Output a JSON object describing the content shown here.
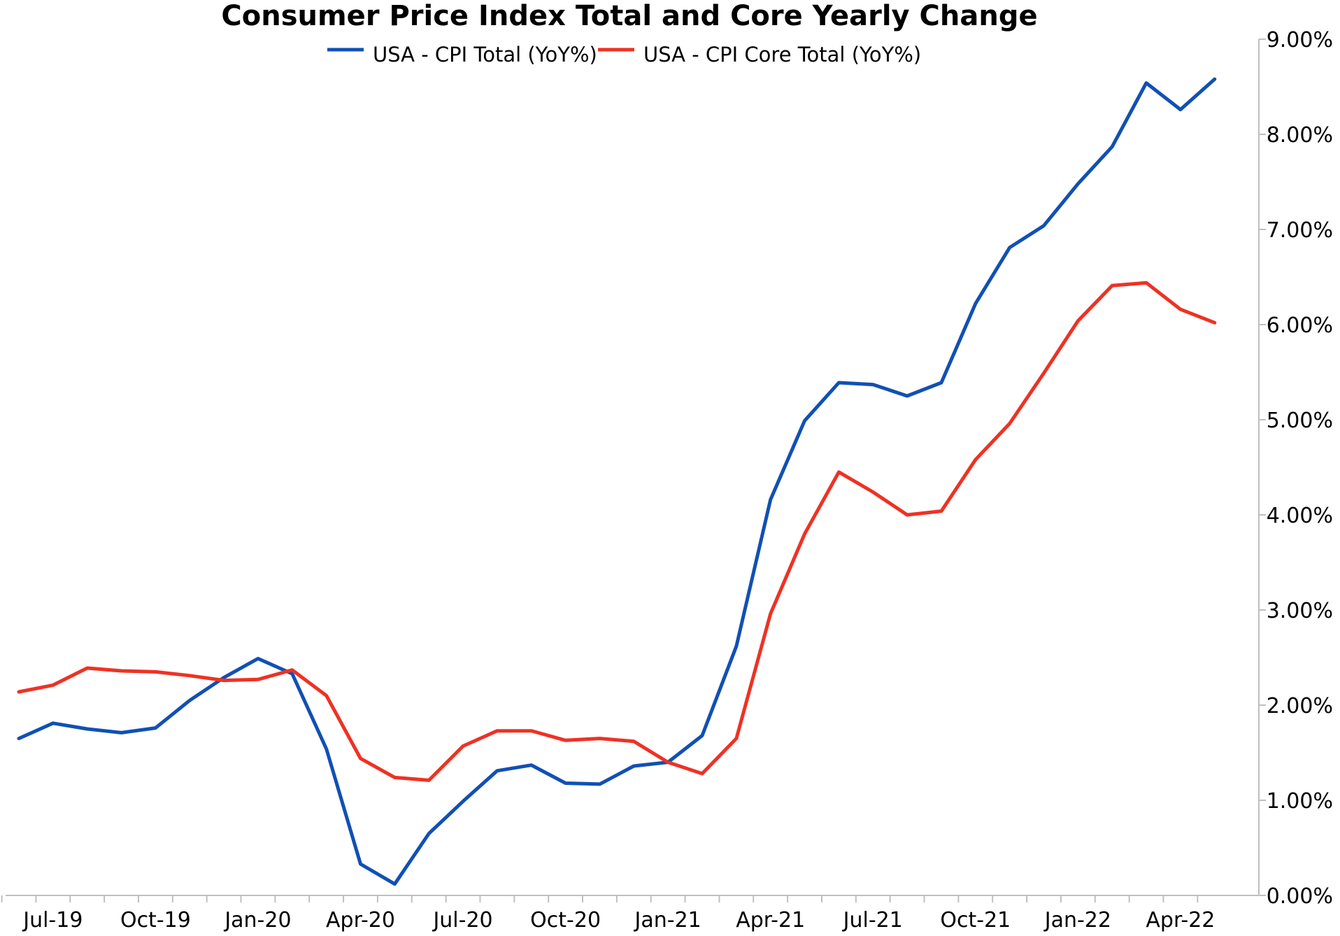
{
  "chart_data": {
    "type": "line",
    "title": "Consumer Price Index Total and Core Yearly Change",
    "xlabel": "",
    "ylabel": "",
    "ylim": [
      0,
      9
    ],
    "y_ticks": [
      "0.00%",
      "1.00%",
      "2.00%",
      "3.00%",
      "4.00%",
      "5.00%",
      "6.00%",
      "7.00%",
      "8.00%",
      "9.00%"
    ],
    "y_axis_position": "right",
    "x_start": "Jun-19",
    "x": [
      "Jun-19",
      "Jul-19",
      "Aug-19",
      "Sep-19",
      "Oct-19",
      "Nov-19",
      "Dec-19",
      "Jan-20",
      "Feb-20",
      "Mar-20",
      "Apr-20",
      "May-20",
      "Jun-20",
      "Jul-20",
      "Aug-20",
      "Sep-20",
      "Oct-20",
      "Nov-20",
      "Dec-20",
      "Jan-21",
      "Feb-21",
      "Mar-21",
      "Apr-21",
      "May-21",
      "Jun-21",
      "Jul-21",
      "Aug-21",
      "Sep-21",
      "Oct-21",
      "Nov-21",
      "Dec-21",
      "Jan-22",
      "Feb-22",
      "Mar-22",
      "Apr-22",
      "May-22"
    ],
    "x_tick_labels": [
      "Jul-19",
      "Oct-19",
      "Jan-20",
      "Apr-20",
      "Jul-20",
      "Oct-20",
      "Jan-21",
      "Apr-21",
      "Jul-21",
      "Oct-21",
      "Jan-22",
      "Apr-22"
    ],
    "legend_position": "top-center",
    "grid": false,
    "series": [
      {
        "name": "USA - CPI Total (YoY%)",
        "color": "#1150b4",
        "values": [
          1.65,
          1.81,
          1.75,
          1.71,
          1.76,
          2.05,
          2.29,
          2.49,
          2.33,
          1.54,
          0.33,
          0.12,
          0.65,
          0.99,
          1.31,
          1.37,
          1.18,
          1.17,
          1.36,
          1.4,
          1.68,
          2.62,
          4.16,
          4.99,
          5.39,
          5.37,
          5.25,
          5.39,
          6.22,
          6.81,
          7.04,
          7.48,
          7.87,
          8.54,
          8.26,
          8.58
        ]
      },
      {
        "name": "USA - CPI Core Total (YoY%)",
        "color": "#ee3224",
        "values": [
          2.14,
          2.21,
          2.39,
          2.36,
          2.35,
          2.31,
          2.26,
          2.27,
          2.37,
          2.1,
          1.44,
          1.24,
          1.21,
          1.57,
          1.73,
          1.73,
          1.63,
          1.65,
          1.62,
          1.4,
          1.28,
          1.65,
          2.96,
          3.8,
          4.45,
          4.24,
          4.0,
          4.04,
          4.58,
          4.96,
          5.49,
          6.04,
          6.41,
          6.44,
          6.16,
          6.02
        ]
      }
    ]
  }
}
